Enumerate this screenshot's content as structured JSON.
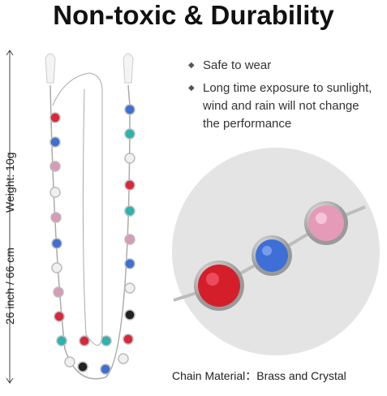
{
  "header": {
    "title": "Non-toxic & Durability"
  },
  "dimensions": {
    "length": "26 inch / 66 cm",
    "weight": "Weight: 10g"
  },
  "features": [
    "Safe to wear",
    "Long time exposure to sunlight, wind and rain will not change the performance"
  ],
  "caption": "Chain Material：Brass and Crystal"
}
